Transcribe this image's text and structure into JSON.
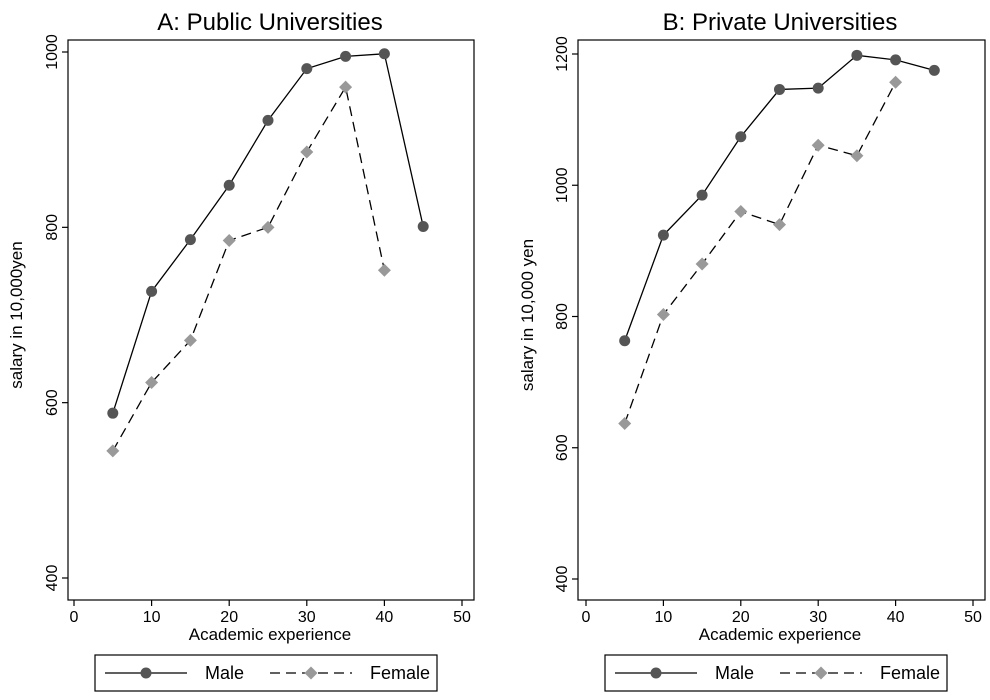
{
  "chart_data": [
    {
      "type": "line",
      "title": "A: Public Universities",
      "xlabel": "Academic experience",
      "ylabel": "salary in 10,000yen",
      "xlim": [
        0,
        50
      ],
      "ylim": [
        400,
        1000
      ],
      "xticks": [
        "0",
        "10",
        "20",
        "30",
        "40",
        "50"
      ],
      "yticks": [
        "400",
        "600",
        "800",
        "1000"
      ],
      "grid": false,
      "legend": "bottom",
      "series": [
        {
          "name": "Male",
          "line_style": "solid",
          "marker": "circle",
          "color": "#555555",
          "x": [
            5,
            10,
            15,
            20,
            25,
            30,
            35,
            40,
            45
          ],
          "values": [
            588,
            727,
            786,
            848,
            922,
            981,
            995,
            998,
            801
          ]
        },
        {
          "name": "Female",
          "line_style": "dashed",
          "marker": "diamond",
          "color": "#999999",
          "x": [
            5,
            10,
            15,
            20,
            25,
            30,
            35,
            40
          ],
          "values": [
            545,
            623,
            671,
            785,
            800,
            886,
            960,
            751
          ]
        }
      ]
    },
    {
      "type": "line",
      "title": "B: Private Universities",
      "xlabel": "Academic experience",
      "ylabel": "salary in 10,000 yen",
      "xlim": [
        0,
        50
      ],
      "ylim": [
        400,
        1200
      ],
      "xticks": [
        "0",
        "10",
        "20",
        "30",
        "40",
        "50"
      ],
      "yticks": [
        "400",
        "600",
        "800",
        "1000",
        "1200"
      ],
      "grid": false,
      "legend": "bottom",
      "series": [
        {
          "name": "Male",
          "line_style": "solid",
          "marker": "circle",
          "color": "#555555",
          "x": [
            5,
            10,
            15,
            20,
            25,
            30,
            35,
            40,
            45
          ],
          "values": [
            763,
            924,
            985,
            1074,
            1146,
            1148,
            1198,
            1191,
            1175
          ]
        },
        {
          "name": "Female",
          "line_style": "dashed",
          "marker": "diamond",
          "color": "#999999",
          "x": [
            5,
            10,
            15,
            20,
            25,
            30,
            35,
            40
          ],
          "values": [
            637,
            803,
            880,
            960,
            940,
            1061,
            1045,
            1157
          ]
        }
      ]
    }
  ]
}
